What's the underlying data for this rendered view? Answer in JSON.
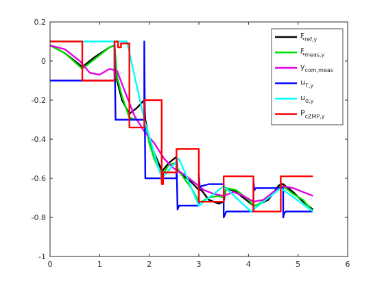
{
  "chart_data": {
    "type": "line",
    "title": "",
    "xlabel": "",
    "ylabel": "",
    "xlim": [
      0,
      6
    ],
    "ylim": [
      -1,
      0.2
    ],
    "xticks": [
      0,
      1,
      2,
      3,
      4,
      5,
      6
    ],
    "yticks": [
      -1,
      -0.8,
      -0.6,
      -0.4,
      -0.2,
      0,
      0.2
    ],
    "xtick_labels": [
      "0",
      "1",
      "2",
      "3",
      "4",
      "5",
      "6"
    ],
    "ytick_labels": [
      "-1",
      "-0.8",
      "-0.6",
      "-0.4",
      "-0.2",
      "0",
      "0.2"
    ],
    "grid": false,
    "legend_position": "top-right",
    "series": [
      {
        "name": "ξref,y",
        "label_main": "ξ",
        "label_sub": "ref,y",
        "color": "#000000",
        "x": [
          0,
          0.3,
          0.65,
          0.9,
          1.2,
          1.3,
          1.35,
          1.45,
          1.6,
          1.75,
          1.9,
          1.92,
          2.0,
          2.1,
          2.25,
          2.27,
          2.4,
          2.55,
          2.57,
          2.7,
          2.85,
          3.0,
          3.05,
          3.2,
          3.4,
          3.5,
          3.55,
          3.75,
          4.0,
          4.1,
          4.15,
          4.4,
          4.6,
          4.65,
          4.7,
          4.9,
          5.1,
          5.3
        ],
        "y": [
          0.08,
          0.04,
          -0.03,
          0.02,
          0.07,
          0.08,
          -0.1,
          -0.2,
          -0.27,
          -0.24,
          -0.2,
          -0.3,
          -0.4,
          -0.47,
          -0.56,
          -0.56,
          -0.52,
          -0.49,
          -0.56,
          -0.59,
          -0.62,
          -0.66,
          -0.66,
          -0.71,
          -0.73,
          -0.72,
          -0.65,
          -0.67,
          -0.72,
          -0.74,
          -0.74,
          -0.71,
          -0.64,
          -0.63,
          -0.63,
          -0.67,
          -0.72,
          -0.76
        ]
      },
      {
        "name": "ξmeas,y",
        "label_main": "ξ",
        "label_sub": "meas,y",
        "color": "#00e000",
        "x": [
          0,
          0.3,
          0.65,
          0.9,
          1.2,
          1.3,
          1.35,
          1.45,
          1.6,
          1.75,
          1.9,
          1.92,
          2.0,
          2.1,
          2.25,
          2.27,
          2.4,
          2.55,
          2.57,
          2.7,
          2.85,
          3.0,
          3.05,
          3.2,
          3.4,
          3.5,
          3.55,
          3.75,
          4.0,
          4.1,
          4.15,
          4.4,
          4.6,
          4.65,
          4.7,
          4.9,
          5.1,
          5.3
        ],
        "y": [
          0.08,
          0.04,
          -0.04,
          0.01,
          0.07,
          0.08,
          -0.08,
          -0.18,
          -0.29,
          -0.3,
          -0.3,
          -0.32,
          -0.42,
          -0.5,
          -0.58,
          -0.58,
          -0.53,
          -0.52,
          -0.55,
          -0.6,
          -0.65,
          -0.72,
          -0.72,
          -0.7,
          -0.69,
          -0.7,
          -0.65,
          -0.66,
          -0.71,
          -0.74,
          -0.74,
          -0.7,
          -0.65,
          -0.64,
          -0.64,
          -0.68,
          -0.71,
          -0.77
        ]
      },
      {
        "name": "ycom,meas",
        "label_main": "y",
        "label_sub": "com,meas",
        "color": "#e600e6",
        "x": [
          0,
          0.3,
          0.6,
          0.8,
          1.0,
          1.2,
          1.35,
          1.5,
          1.7,
          1.9,
          2.1,
          2.3,
          2.5,
          2.7,
          2.9,
          3.1,
          3.3,
          3.5,
          3.7,
          3.9,
          4.1,
          4.3,
          4.5,
          4.7,
          4.9,
          5.1,
          5.3
        ],
        "y": [
          0.08,
          0.06,
          0.0,
          -0.06,
          -0.07,
          -0.04,
          -0.05,
          -0.15,
          -0.28,
          -0.36,
          -0.42,
          -0.5,
          -0.55,
          -0.58,
          -0.62,
          -0.66,
          -0.68,
          -0.69,
          -0.67,
          -0.69,
          -0.72,
          -0.71,
          -0.67,
          -0.64,
          -0.65,
          -0.67,
          -0.69
        ]
      },
      {
        "name": "uT,y",
        "label_main": "u",
        "label_sub": "T,y",
        "color": "#0000ff",
        "x": [
          0,
          1.3,
          1.3,
          1.32,
          1.36,
          1.9,
          1.9,
          1.92,
          1.96,
          2.55,
          2.55,
          2.57,
          2.6,
          2.7,
          3.0,
          3.0,
          3.02,
          3.05,
          3.2,
          3.5,
          3.5,
          3.52,
          3.55,
          3.7,
          4.1,
          4.1,
          4.12,
          4.15,
          4.3,
          4.7,
          4.7,
          4.72,
          4.75,
          5.3
        ],
        "y": [
          -0.1,
          -0.1,
          0.1,
          -0.3,
          -0.3,
          -0.3,
          0.1,
          -0.6,
          -0.6,
          -0.6,
          -0.5,
          -0.76,
          -0.74,
          -0.74,
          -0.74,
          -0.58,
          -0.65,
          -0.64,
          -0.63,
          -0.63,
          -0.8,
          -0.79,
          -0.77,
          -0.77,
          -0.77,
          -0.61,
          -0.66,
          -0.65,
          -0.65,
          -0.65,
          -0.8,
          -0.78,
          -0.77,
          -0.77
        ]
      },
      {
        "name": "u0,y",
        "label_main": "u",
        "label_sub": "0,y",
        "color": "#00ffff",
        "x": [
          0,
          1.35,
          1.35,
          1.55,
          1.9,
          2.25,
          2.6,
          3.0,
          3.5,
          4.05,
          4.65,
          5.3
        ],
        "y": [
          0.1,
          0.1,
          0.1,
          0.1,
          -0.3,
          -0.6,
          -0.5,
          -0.74,
          -0.64,
          -0.77,
          -0.65,
          -0.77
        ]
      },
      {
        "name": "PcZMP,y",
        "label_main": "P",
        "label_sub": "cZMP,y",
        "color": "#ff0000",
        "x": [
          0,
          0.65,
          0.65,
          1.3,
          1.3,
          1.37,
          1.37,
          1.43,
          1.43,
          1.6,
          1.6,
          1.9,
          1.9,
          2.25,
          2.25,
          2.28,
          2.28,
          2.55,
          2.55,
          3.0,
          3.0,
          3.5,
          3.5,
          4.1,
          4.1,
          4.65,
          4.65,
          5.3
        ],
        "y": [
          0.1,
          0.1,
          -0.1,
          -0.1,
          0.1,
          0.1,
          0.07,
          0.07,
          0.09,
          0.09,
          -0.34,
          -0.34,
          -0.2,
          -0.2,
          -0.63,
          -0.63,
          -0.57,
          -0.57,
          -0.45,
          -0.45,
          -0.72,
          -0.72,
          -0.59,
          -0.59,
          -0.77,
          -0.77,
          -0.59,
          -0.59
        ]
      }
    ]
  }
}
